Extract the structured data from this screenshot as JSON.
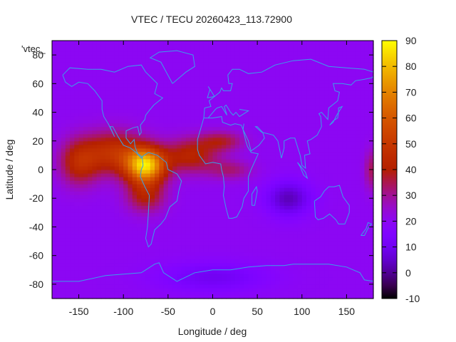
{
  "chart_data": {
    "type": "heatmap",
    "title": "VTEC / TECU 20260423_113.72900",
    "xlabel": "Longitude / deg",
    "ylabel": "Latitude / deg",
    "xlim": [
      -180,
      180
    ],
    "ylim": [
      -90,
      90
    ],
    "x_ticks": [
      -150,
      -100,
      -50,
      0,
      50,
      100,
      150
    ],
    "y_ticks": [
      -80,
      -60,
      -40,
      -20,
      0,
      20,
      40,
      60,
      80
    ],
    "colorbar": {
      "range": [
        -10,
        90
      ],
      "ticks": [
        -10,
        0,
        10,
        20,
        30,
        40,
        50,
        60,
        70,
        80,
        90
      ]
    },
    "legend_label": "'vtec_",
    "background_value": 20,
    "features": [
      {
        "lon": -75,
        "lat": 3,
        "sx": 22,
        "sy": 12,
        "amp": 60
      },
      {
        "lon": -110,
        "lat": 12,
        "sx": 35,
        "sy": 15,
        "amp": 27
      },
      {
        "lon": -150,
        "lat": 5,
        "sx": 22,
        "sy": 16,
        "amp": 22
      },
      {
        "lon": -75,
        "lat": -18,
        "sx": 22,
        "sy": 12,
        "amp": 20
      },
      {
        "lon": -25,
        "lat": 10,
        "sx": 30,
        "sy": 12,
        "amp": 22
      },
      {
        "lon": 10,
        "lat": 20,
        "sx": 25,
        "sy": 7,
        "amp": 16
      },
      {
        "lon": 20,
        "lat": 0,
        "sx": 25,
        "sy": 7,
        "amp": 12
      },
      {
        "lon": 85,
        "lat": -20,
        "sx": 25,
        "sy": 12,
        "amp": -17
      },
      {
        "lon": 0,
        "lat": -75,
        "sx": 60,
        "sy": 10,
        "amp": -10
      },
      {
        "lon": 178,
        "lat": 0,
        "sx": 8,
        "sy": 14,
        "amp": 14
      }
    ]
  }
}
